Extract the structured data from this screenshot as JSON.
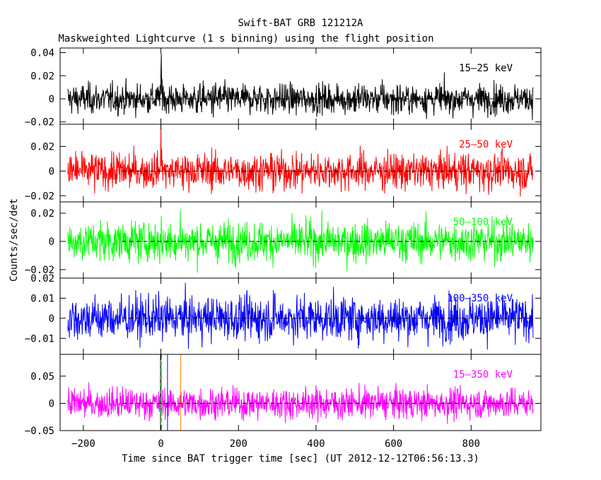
{
  "title": "Swift-BAT GRB 121212A",
  "subtitle": "Maskweighted Lightcurve (1 s binning) using the flight position",
  "chart_data": {
    "type": "line",
    "title": "Swift-BAT GRB 121212A",
    "subtitle": "Maskweighted Lightcurve (1 s binning) using the flight position",
    "xlabel": "Time since BAT trigger time [sec] (UT 2012-12-12T06:56:13.3)",
    "ylabel": "Counts/sec/det",
    "xlim": [
      -260,
      980
    ],
    "x_ticks": [
      -200,
      0,
      200,
      400,
      600,
      800
    ],
    "x_tick_labels": [
      "−200",
      "0",
      "200",
      "400",
      "600",
      "800"
    ],
    "data_range": {
      "start": -240,
      "end": 960,
      "binning": 1
    },
    "panels": [
      {
        "band": "15–25 keV",
        "color": "#000000",
        "ylim": [
          -0.022,
          0.044
        ],
        "y_ticks": [
          -0.02,
          0,
          0.02,
          0.04
        ],
        "y_tick_labels": [
          "−0.02",
          "0",
          "0.02",
          "0.04"
        ],
        "noise_sigma": 0.0065,
        "peak": {
          "x": 1,
          "y": 0.039
        }
      },
      {
        "band": "25–50 keV",
        "color": "#ff0000",
        "ylim": [
          -0.025,
          0.038
        ],
        "y_ticks": [
          -0.02,
          0,
          0.02
        ],
        "y_tick_labels": [
          "−0.02",
          "0",
          "0.02"
        ],
        "noise_sigma": 0.0075,
        "peak": {
          "x": 0,
          "y": 0.037
        }
      },
      {
        "band": "50–100 keV",
        "color": "#00ff00",
        "ylim": [
          -0.026,
          0.028
        ],
        "y_ticks": [
          -0.02,
          0,
          0.02
        ],
        "y_tick_labels": [
          "−0.02",
          "0",
          "0.02"
        ],
        "noise_sigma": 0.007,
        "peak": {
          "x": 50,
          "y": 0.022
        }
      },
      {
        "band": "100–350 keV",
        "color": "#0000ff",
        "ylim": [
          -0.018,
          0.02
        ],
        "y_ticks": [
          -0.01,
          0,
          0.01,
          0.02
        ],
        "y_tick_labels": [
          "−0.01",
          "0",
          "0.01",
          "0.02"
        ],
        "noise_sigma": 0.0055,
        "peak": {
          "x": 290,
          "y": 0.014
        }
      },
      {
        "band": "15–350 keV",
        "color": "#ff00ff",
        "ylim": [
          -0.05,
          0.09
        ],
        "y_ticks": [
          -0.05,
          0,
          0.05
        ],
        "y_tick_labels": [
          "−0.05",
          "0",
          "0.05"
        ],
        "noise_sigma": 0.014,
        "peak": {
          "x": 0,
          "y": 0.07
        }
      }
    ],
    "markers": [
      {
        "x": -1,
        "color": "#000000",
        "style": "solid"
      },
      {
        "x": 1,
        "color": "#00ff00",
        "style": "dashed"
      },
      {
        "x": 17,
        "color": "#0000ff",
        "style": "solid"
      },
      {
        "x": 51,
        "color": "#ff8000",
        "style": "solid"
      }
    ],
    "zero_line": {
      "color": "#000000",
      "style": "dashed"
    },
    "grid": false,
    "legend": "per-panel band label, top-right"
  }
}
